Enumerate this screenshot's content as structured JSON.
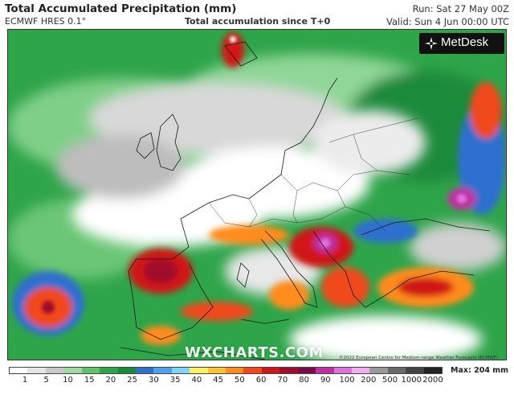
{
  "header": {
    "title": "Total Accumulated Precipitation (mm)",
    "model": "ECMWF HRES 0.1°",
    "subtitle": "Total accumulation since T+0",
    "run": "Run: Sat 27 May 00Z",
    "valid": "Valid: Sun 4 Jun 00:00 UTC"
  },
  "branding": {
    "logo_text": "MetDesk",
    "logo_icon": "metdesk-star-icon",
    "watermark": "WXCHARTS.COM",
    "copyright": "©2022 European Centre for Medium-range Weather Forecasts (ECMWF)"
  },
  "legend": {
    "ticks": [
      "1",
      "5",
      "10",
      "15",
      "20",
      "25",
      "30",
      "35",
      "40",
      "45",
      "50",
      "60",
      "70",
      "80",
      "90",
      "100",
      "200",
      "500",
      "1000",
      "2000"
    ],
    "max_label": "Max: 204 mm",
    "colors": [
      "#ffffff",
      "#e6e6e6",
      "#c8c8c8",
      "#9fdba1",
      "#5fc36a",
      "#2fa54a",
      "#1a8a3a",
      "#2d6fcf",
      "#4fa0f0",
      "#7fd4ff",
      "#fff066",
      "#ffc433",
      "#ff8c1a",
      "#f04a1a",
      "#d01818",
      "#a00c2a",
      "#7a0a4a",
      "#c030a0",
      "#e070e0",
      "#f0b0f0",
      "#9a9a9a",
      "#6a6a6a",
      "#444444",
      "#222222"
    ]
  },
  "map": {
    "region": "Europe",
    "base_color": "#2fa54a"
  }
}
